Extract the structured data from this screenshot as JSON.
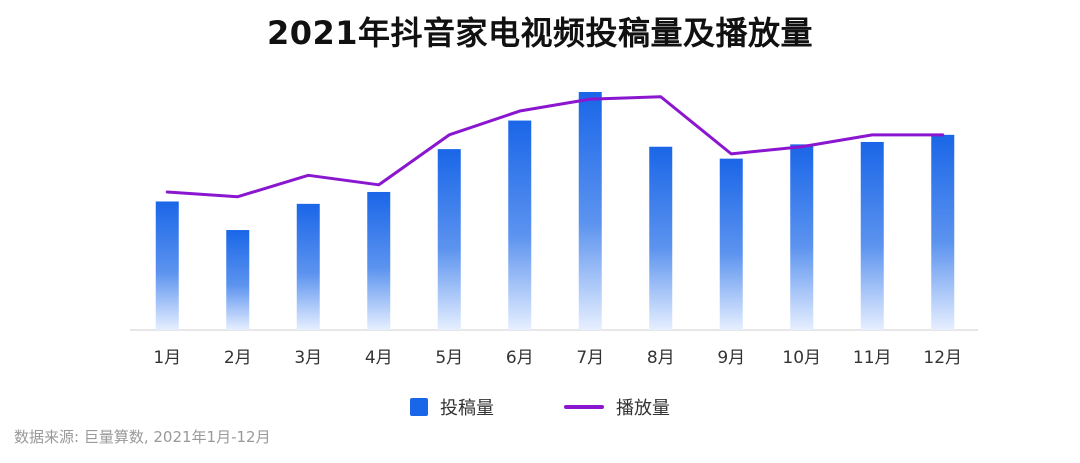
{
  "title": "2021年抖音家电视频投稿量及播放量",
  "legend": {
    "bar_label": "投稿量",
    "line_label": "播放量"
  },
  "source": "数据来源: 巨量算数, 2021年1月-12月",
  "colors": {
    "bar": "#1a66e8",
    "bar_fade": "#e6efff",
    "line": "#8b16d0",
    "axis": "#cfcfcf"
  },
  "chart_data": {
    "type": "bar",
    "title": "2021年抖音家电视频投稿量及播放量",
    "xlabel": "",
    "ylabel": "",
    "categories": [
      "1月",
      "2月",
      "3月",
      "4月",
      "5月",
      "6月",
      "7月",
      "8月",
      "9月",
      "10月",
      "11月",
      "12月"
    ],
    "ylim": [
      0,
      100
    ],
    "grid": false,
    "legend_position": "bottom",
    "series": [
      {
        "name": "投稿量",
        "type": "bar",
        "values": [
          54,
          42,
          53,
          58,
          76,
          88,
          100,
          77,
          72,
          78,
          79,
          82
        ]
      },
      {
        "name": "播放量",
        "type": "line",
        "values": [
          58,
          56,
          65,
          61,
          82,
          92,
          97,
          98,
          74,
          77,
          82,
          82
        ]
      }
    ]
  }
}
